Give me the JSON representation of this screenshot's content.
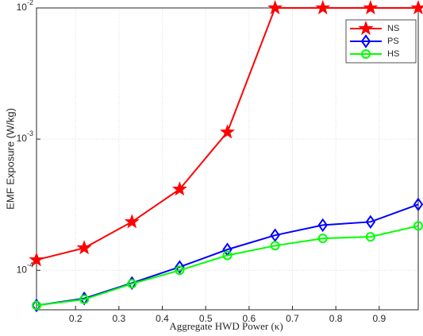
{
  "chart_data": {
    "type": "line",
    "x_label": "Aggregate HWD Power (κ)",
    "y_label": "EMF Exposure (W/kg)",
    "x": [
      0.11,
      0.22,
      0.33,
      0.44,
      0.55,
      0.66,
      0.77,
      0.88,
      0.99
    ],
    "series": [
      {
        "name": "NS",
        "color": "#ff0000",
        "marker": "star",
        "values": [
          0.00012,
          0.000148,
          0.000234,
          0.000415,
          0.00113,
          0.01,
          0.01,
          0.01,
          0.01
        ]
      },
      {
        "name": "PS",
        "color": "#0000ff",
        "marker": "diamond",
        "values": [
          5.4e-05,
          6.1e-05,
          8e-05,
          0.000106,
          0.000144,
          0.000185,
          0.000221,
          0.000234,
          0.000318
        ]
      },
      {
        "name": "HS",
        "color": "#00ff00",
        "marker": "circle",
        "values": [
          5.4e-05,
          6e-05,
          7.9e-05,
          0.0001,
          0.00013,
          0.000154,
          0.000175,
          0.00018,
          0.000218
        ]
      }
    ],
    "xlim": [
      0.11,
      0.99
    ],
    "xticks": [
      0.2,
      0.3,
      0.4,
      0.5,
      0.6,
      0.7,
      0.8,
      0.9
    ],
    "ylim": [
      5e-05,
      0.01
    ],
    "yticks": [
      {
        "value": 0.0001,
        "label": "10",
        "exponent": "-4"
      },
      {
        "value": 0.001,
        "label": "10",
        "exponent": "-3"
      },
      {
        "value": 0.01,
        "label": "10",
        "exponent": "-2"
      }
    ],
    "y_scale": "log",
    "grid": true,
    "legend_position": "upper right"
  }
}
